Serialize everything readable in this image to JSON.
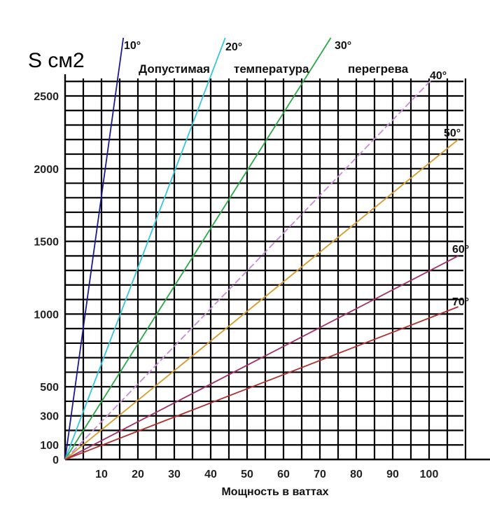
{
  "chart_data": {
    "type": "line",
    "ylabel": "S см2",
    "title_words": [
      "Допустимая",
      "температура",
      "перегрева"
    ],
    "xlabel": "Мощность в ваттах",
    "x_ticks": [
      10,
      20,
      30,
      40,
      50,
      60,
      70,
      80,
      90,
      100
    ],
    "y_ticks": [
      0,
      100,
      300,
      500,
      1000,
      1500,
      2000,
      2500
    ],
    "xlim": [
      0,
      110
    ],
    "ylim": [
      0,
      2900
    ],
    "grid": true,
    "series": [
      {
        "name": "10°",
        "color": "#1a1a8c",
        "dashed": false,
        "points": [
          [
            0,
            0
          ],
          [
            16,
            2900
          ]
        ]
      },
      {
        "name": "20°",
        "color": "#33c8d8",
        "dashed": false,
        "points": [
          [
            0,
            0
          ],
          [
            44,
            2900
          ]
        ]
      },
      {
        "name": "30°",
        "color": "#2aa84a",
        "dashed": false,
        "points": [
          [
            0,
            0
          ],
          [
            73,
            2900
          ]
        ]
      },
      {
        "name": "40°",
        "color": "#c98ad8",
        "dashed": true,
        "points": [
          [
            0,
            0
          ],
          [
            101,
            2620
          ]
        ]
      },
      {
        "name": "50°",
        "color": "#d49a2a",
        "dashed": false,
        "points": [
          [
            0,
            0
          ],
          [
            108,
            2200
          ]
        ]
      },
      {
        "name": "60°",
        "color": "#a0306a",
        "dashed": false,
        "points": [
          [
            0,
            0
          ],
          [
            108,
            1400
          ]
        ]
      },
      {
        "name": "70°",
        "color": "#b03030",
        "dashed": false,
        "points": [
          [
            0,
            0
          ],
          [
            108,
            1050
          ]
        ]
      }
    ]
  }
}
